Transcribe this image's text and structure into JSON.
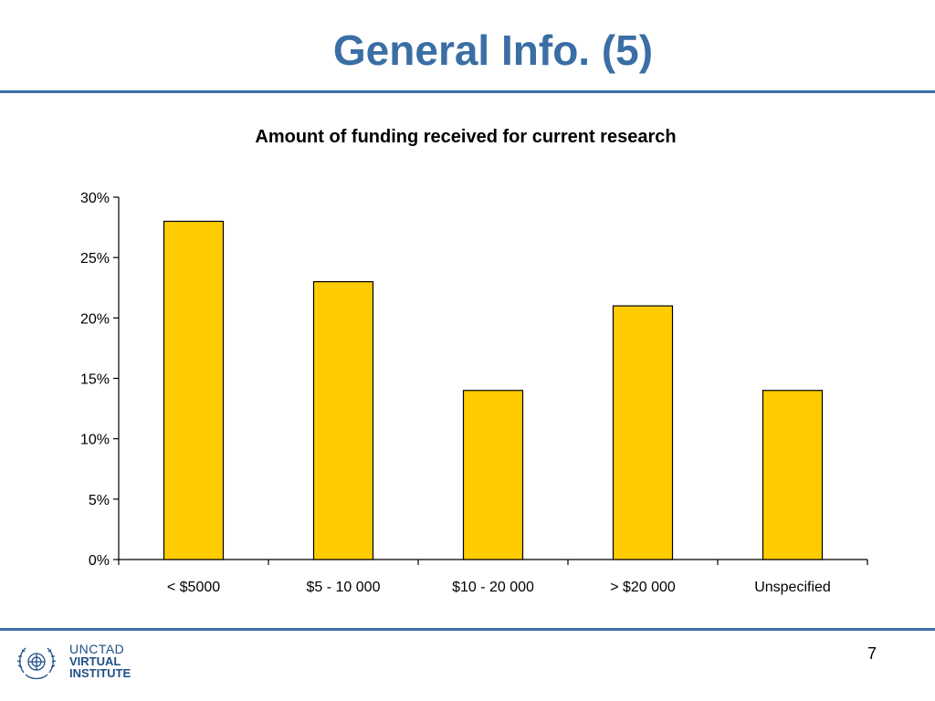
{
  "slide": {
    "title": "General Info. (5)",
    "page_number": "7"
  },
  "logo": {
    "line1": "UNCTAD",
    "line2": "VIRTUAL",
    "line3": "INSTITUTE"
  },
  "colors": {
    "accent": "#3a6ea5",
    "bar_fill": "#ffcc00",
    "bar_stroke": "#000000"
  },
  "chart_data": {
    "type": "bar",
    "title": "Amount of funding received for current research",
    "xlabel": "",
    "ylabel": "",
    "categories": [
      "< $5000",
      "$5 - 10 000",
      "$10 - 20 000",
      "> $20 000",
      "Unspecified"
    ],
    "values": [
      28,
      23,
      14,
      21,
      14
    ],
    "ylim": [
      0,
      30
    ],
    "yticks": [
      0,
      5,
      10,
      15,
      20,
      25,
      30
    ],
    "ytick_labels": [
      "0%",
      "5%",
      "10%",
      "15%",
      "20%",
      "25%",
      "30%"
    ],
    "grid": false,
    "legend": "none"
  }
}
